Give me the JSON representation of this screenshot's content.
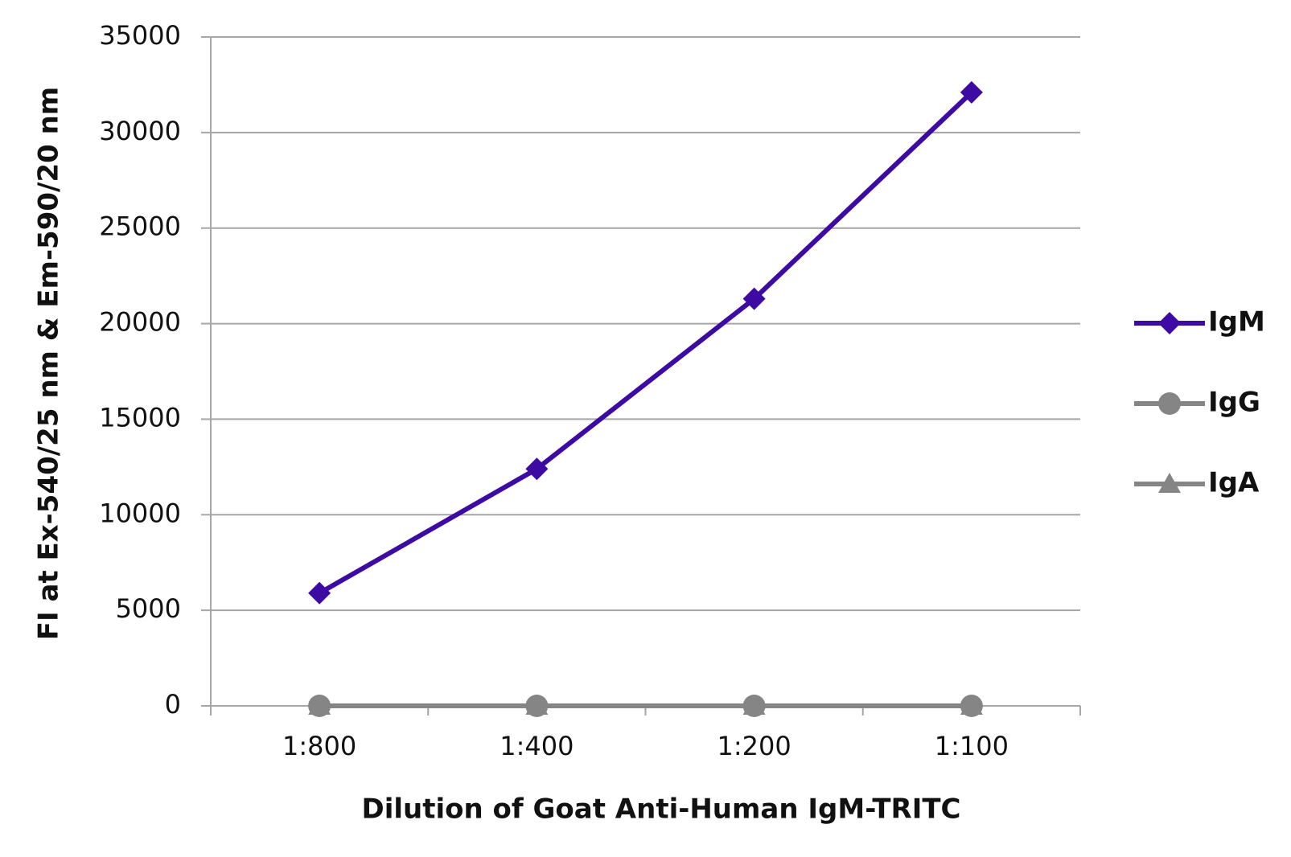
{
  "chart_data": {
    "type": "line",
    "x_label": "Dilution of Goat Anti-Human IgM-TRITC",
    "y_label": "FI at Ex-540/25 nm & Em-590/20 nm",
    "categories": [
      "1:800",
      "1:400",
      "1:200",
      "1:100"
    ],
    "series": [
      {
        "name": "IgM",
        "color": "#3d0ba3",
        "marker": "diamond",
        "values": [
          5900,
          12400,
          21300,
          32100
        ]
      },
      {
        "name": "IgG",
        "color": "#858585",
        "marker": "circle",
        "values": [
          0,
          0,
          0,
          0
        ]
      },
      {
        "name": "IgA",
        "color": "#858585",
        "marker": "triangle",
        "values": [
          0,
          0,
          0,
          0
        ]
      }
    ],
    "ylim": [
      0,
      35000
    ],
    "yticks": [
      0,
      5000,
      10000,
      15000,
      20000,
      25000,
      30000,
      35000
    ],
    "grid": true,
    "legend": "right"
  }
}
